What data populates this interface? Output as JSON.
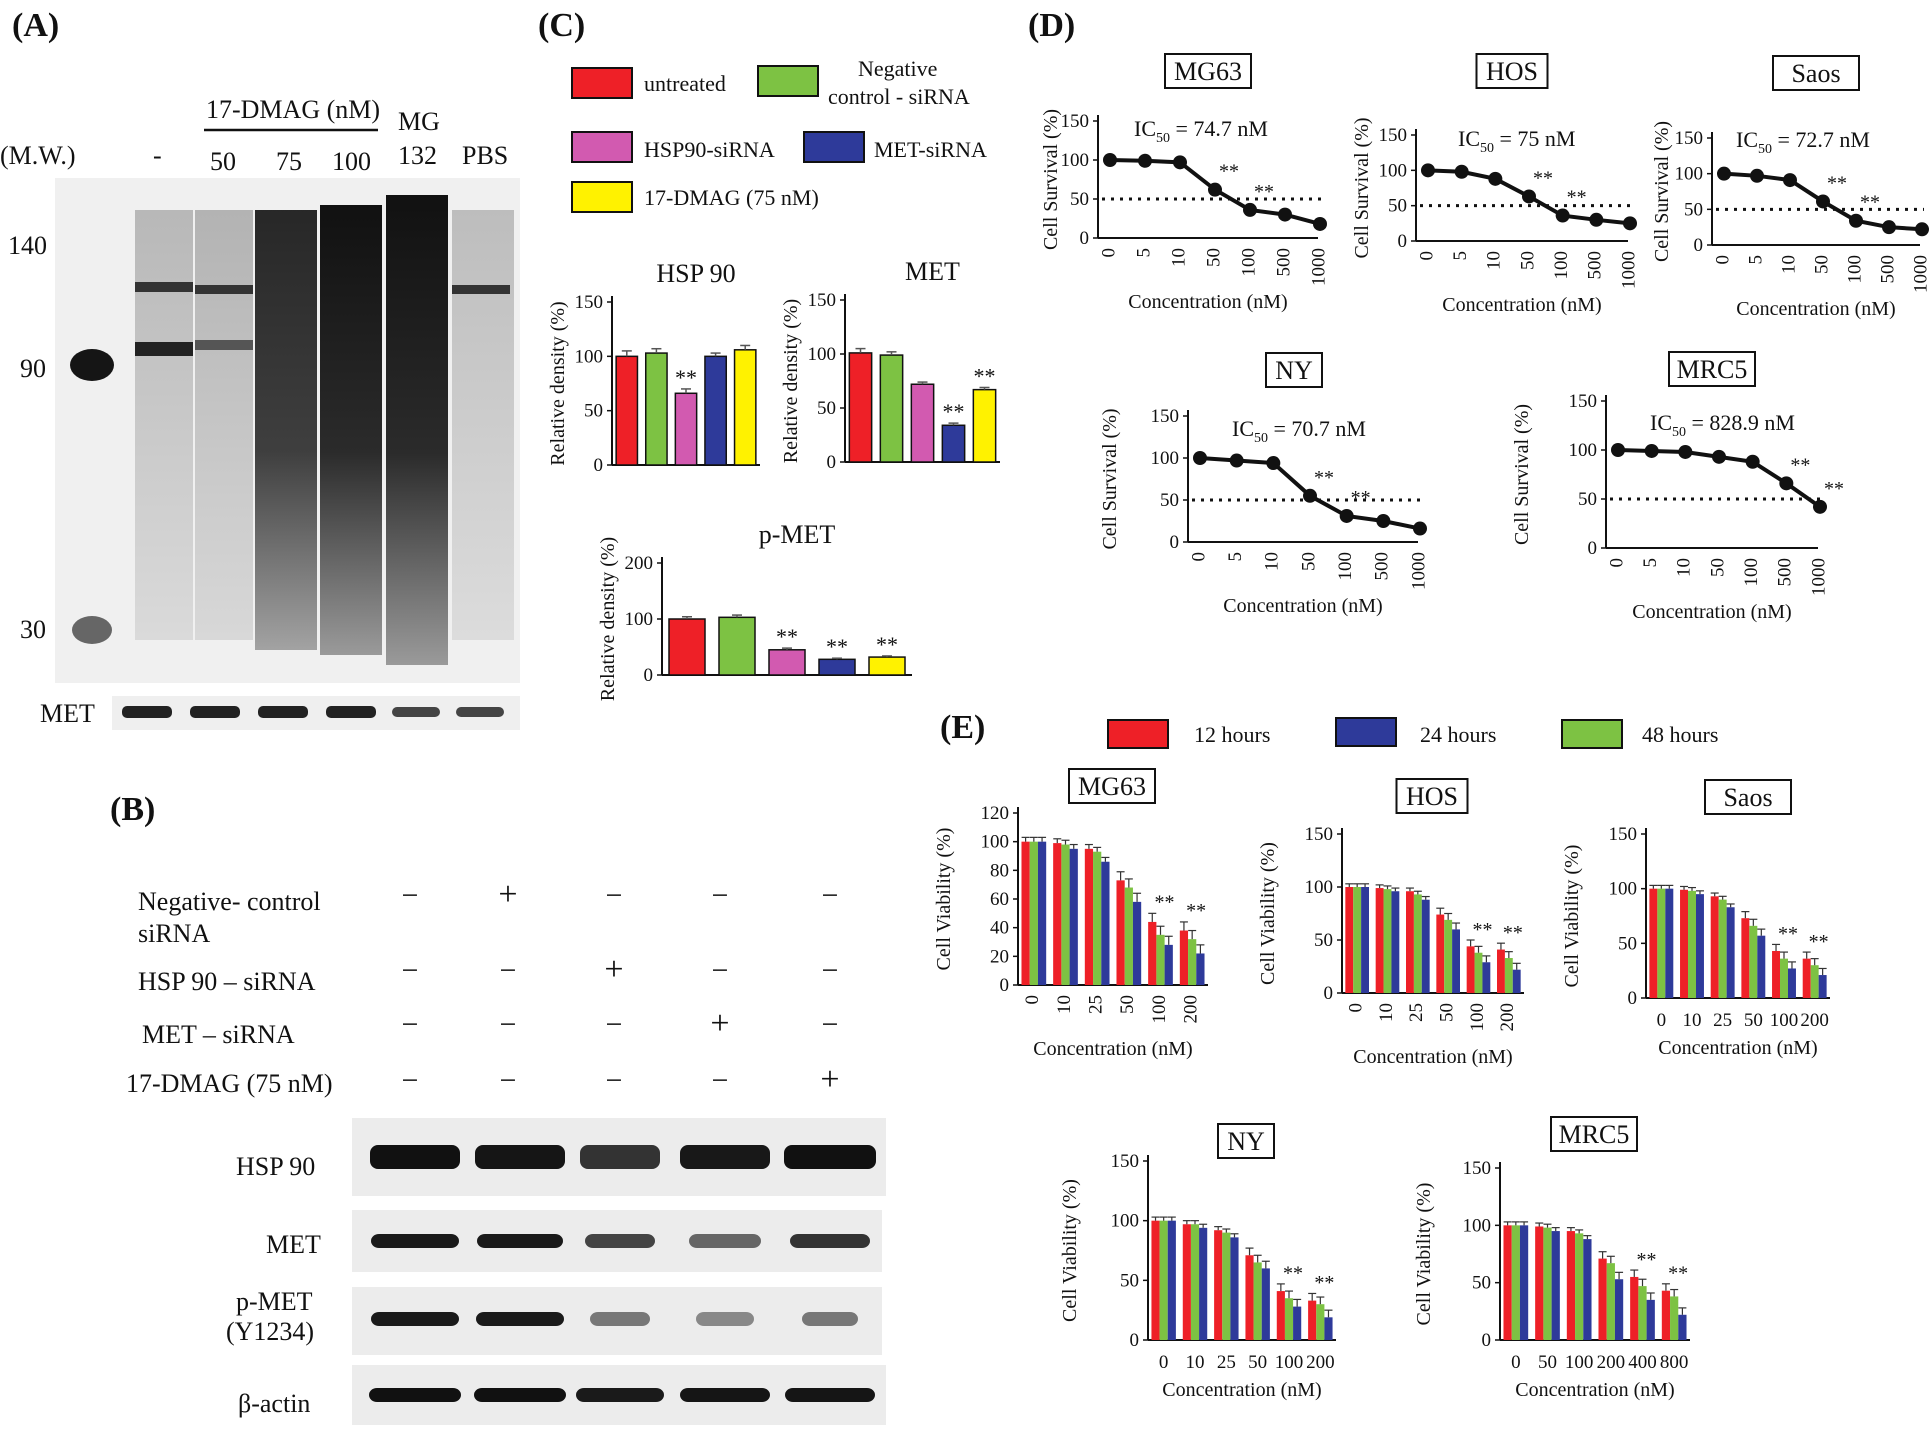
{
  "panels": {
    "A": "(A)",
    "B": "(B)",
    "C": "(C)",
    "D": "(D)",
    "E": "(E)"
  },
  "colors": {
    "untreated": "#ee2027",
    "neg_ctrl": "#7dc243",
    "hsp90_sirna": "#d25ab0",
    "met_sirna": "#2e3a9a",
    "dmag": "#fff200",
    "h12": "#ee2027",
    "h24": "#2e3a9a",
    "h48": "#7dc243"
  },
  "blotA": {
    "dmag_label": "17-DMAG  (nM)",
    "mw_label": "(M.W.)",
    "lanes": [
      "-",
      "50",
      "75",
      "100",
      "MG\n132",
      "PBS"
    ],
    "mg_top": "MG",
    "mg_bottom": "132",
    "mw_markers": [
      "140",
      "90",
      "30"
    ],
    "met_label": "MET"
  },
  "blotB": {
    "conditions": [
      {
        "label": "Negative- control",
        "label2": "siRNA",
        "signs": [
          "-",
          "+",
          "-",
          "-",
          "-"
        ]
      },
      {
        "label": "HSP 90 – siRNA",
        "label2": "",
        "signs": [
          "-",
          "-",
          "+",
          "-",
          "-"
        ]
      },
      {
        "label": "MET – siRNA",
        "label2": "",
        "signs": [
          "-",
          "-",
          "-",
          "+",
          "-"
        ]
      },
      {
        "label": "17-DMAG  (75 nM)",
        "label2": "",
        "signs": [
          "-",
          "-",
          "-",
          "-",
          "+"
        ]
      }
    ],
    "rows": [
      "HSP 90",
      "MET",
      "p-MET",
      "β-actin"
    ],
    "pmet_sub": "(Y1234)"
  },
  "legendC": [
    "untreated",
    "Negative",
    "control - siRNA",
    "HSP90-siRNA",
    "MET-siRNA",
    "17-DMAG (75 nM)"
  ],
  "legendE": [
    "12 hours",
    "24 hours",
    "48 hours"
  ],
  "chart_data": [
    {
      "panel": "C",
      "type": "bar",
      "title": "HSP 90",
      "ylabel": "Relative density (%)",
      "ylim": [
        0,
        150
      ],
      "yticks": [
        0,
        50,
        100,
        150
      ],
      "categories": [
        "untreated",
        "Negative control - siRNA",
        "HSP90-siRNA",
        "MET-siRNA",
        "17-DMAG (75 nM)"
      ],
      "values": [
        100,
        103,
        66,
        100,
        106
      ],
      "errors": [
        5,
        4,
        4,
        3,
        4
      ],
      "marks": [
        "",
        "",
        "**",
        "",
        ""
      ]
    },
    {
      "panel": "C",
      "type": "bar",
      "title": "MET",
      "ylabel": "Relative density (%)",
      "ylim": [
        0,
        150
      ],
      "yticks": [
        0,
        50,
        100,
        150
      ],
      "categories": [
        "untreated",
        "Negative control - siRNA",
        "HSP90-siRNA",
        "MET-siRNA",
        "17-DMAG (75 nM)"
      ],
      "values": [
        101,
        99,
        72,
        34,
        67
      ],
      "errors": [
        4,
        3,
        2,
        2,
        2
      ],
      "marks": [
        "",
        "",
        "",
        "**",
        "**"
      ]
    },
    {
      "panel": "C",
      "type": "bar",
      "title": "p-MET",
      "ylabel": "Relative density (%)",
      "ylim": [
        0,
        200
      ],
      "yticks": [
        0,
        100,
        200
      ],
      "categories": [
        "untreated",
        "Negative control - siRNA",
        "HSP90-siRNA",
        "MET-siRNA",
        "17-DMAG (75 nM)"
      ],
      "values": [
        100,
        103,
        45,
        28,
        32
      ],
      "errors": [
        4,
        4,
        3,
        2,
        2
      ],
      "marks": [
        "",
        "",
        "**",
        "**",
        "**"
      ]
    },
    {
      "panel": "D",
      "type": "line",
      "title": "MG63",
      "ic50": "= 74.7 nM",
      "xlabel": "Concentration  (nM)",
      "ylabel": "Cell Survival (%)",
      "ylim": [
        0,
        150
      ],
      "yticks": [
        0,
        50,
        100,
        150
      ],
      "x": [
        "0",
        "5",
        "10",
        "50",
        "100",
        "500",
        "1000"
      ],
      "y": [
        100,
        99,
        97,
        62,
        36,
        30,
        18
      ],
      "threshold": 50,
      "marks": [
        "",
        "",
        "",
        "**",
        "**",
        "",
        ""
      ]
    },
    {
      "panel": "D",
      "type": "line",
      "title": "HOS",
      "ic50": "= 75 nM",
      "xlabel": "Concentration  (nM)",
      "ylabel": "Cell Survival (%)",
      "ylim": [
        0,
        150
      ],
      "yticks": [
        0,
        50,
        100,
        150
      ],
      "x": [
        "0",
        "5",
        "10",
        "50",
        "100",
        "500",
        "1000"
      ],
      "y": [
        100,
        98,
        88,
        63,
        36,
        30,
        25
      ],
      "threshold": 50,
      "marks": [
        "",
        "",
        "",
        "**",
        "**",
        "",
        ""
      ]
    },
    {
      "panel": "D",
      "type": "line",
      "title": "Saos",
      "ic50": "= 72.7 nM",
      "xlabel": "Concentration  (nM)",
      "ylabel": "Cell Survival (%)",
      "ylim": [
        0,
        150
      ],
      "yticks": [
        0,
        50,
        100,
        150
      ],
      "x": [
        "0",
        "5",
        "10",
        "50",
        "100",
        "500",
        "1000"
      ],
      "y": [
        100,
        97,
        91,
        61,
        34,
        25,
        22
      ],
      "threshold": 50,
      "marks": [
        "",
        "",
        "",
        "**",
        "**",
        "",
        ""
      ]
    },
    {
      "panel": "D",
      "type": "line",
      "title": "NY",
      "ic50": "= 70.7 nM",
      "xlabel": "Concentration  (nM)",
      "ylabel": "Cell Survival (%)",
      "ylim": [
        0,
        150
      ],
      "yticks": [
        0,
        50,
        100,
        150
      ],
      "x": [
        "0",
        "5",
        "10",
        "50",
        "100",
        "500",
        "1000"
      ],
      "y": [
        100,
        97,
        94,
        55,
        31,
        25,
        16
      ],
      "threshold": 50,
      "marks": [
        "",
        "",
        "",
        "**",
        "**",
        "",
        ""
      ]
    },
    {
      "panel": "D",
      "type": "line",
      "title": "MRC5",
      "ic50": "= 828.9 nM",
      "xlabel": "Concentration  (nM)",
      "ylabel": "Cell Survival (%)",
      "ylim": [
        0,
        150
      ],
      "yticks": [
        0,
        50,
        100,
        150
      ],
      "x": [
        "0",
        "5",
        "10",
        "50",
        "100",
        "500",
        "1000"
      ],
      "y": [
        100,
        99,
        98,
        93,
        88,
        66,
        42
      ],
      "threshold": 50,
      "marks": [
        "",
        "",
        "",
        "",
        "",
        "**",
        "**"
      ]
    },
    {
      "panel": "E",
      "type": "bar",
      "title": "MG63",
      "xlabel": "Concentration  (nM)",
      "ylabel": "Cell Viability (%)",
      "ylim": [
        0,
        120
      ],
      "yticks": [
        0,
        20,
        40,
        60,
        80,
        100,
        120
      ],
      "rotate": true,
      "categories": [
        "0",
        "10",
        "25",
        "50",
        "100",
        "200"
      ],
      "series": [
        {
          "name": "12 hours",
          "values": [
            100,
            99,
            95,
            73,
            44,
            38
          ]
        },
        {
          "name": "48 hours",
          "values": [
            100,
            98,
            93,
            68,
            35,
            32
          ]
        },
        {
          "name": "24 hours",
          "values": [
            100,
            95,
            86,
            58,
            28,
            22
          ]
        }
      ],
      "marks": [
        "",
        "",
        "",
        "",
        "**",
        "**"
      ]
    },
    {
      "panel": "E",
      "type": "bar",
      "title": "HOS",
      "xlabel": "Concentration  (nM)",
      "ylabel": "Cell Viability (%)",
      "ylim": [
        0,
        150
      ],
      "yticks": [
        0,
        50,
        100,
        150
      ],
      "rotate": true,
      "categories": [
        "0",
        "10",
        "25",
        "50",
        "100",
        "200"
      ],
      "series": [
        {
          "name": "12 hours",
          "values": [
            100,
            99,
            96,
            74,
            44,
            41
          ]
        },
        {
          "name": "48 hours",
          "values": [
            100,
            98,
            93,
            69,
            38,
            33
          ]
        },
        {
          "name": "24 hours",
          "values": [
            100,
            96,
            88,
            60,
            29,
            22
          ]
        }
      ],
      "marks": [
        "",
        "",
        "",
        "",
        "**",
        "**"
      ]
    },
    {
      "panel": "E",
      "type": "bar",
      "title": "Saos",
      "xlabel": "Concentration  (nM)",
      "ylabel": "Cell Viability (%)",
      "ylim": [
        0,
        150
      ],
      "yticks": [
        0,
        50,
        100,
        150
      ],
      "rotate": false,
      "categories": [
        "0",
        "10",
        "25",
        "50",
        "100",
        "200"
      ],
      "series": [
        {
          "name": "12 hours",
          "values": [
            100,
            99,
            93,
            73,
            43,
            36
          ]
        },
        {
          "name": "48 hours",
          "values": [
            100,
            98,
            90,
            66,
            36,
            30
          ]
        },
        {
          "name": "24 hours",
          "values": [
            100,
            95,
            83,
            57,
            27,
            21
          ]
        }
      ],
      "marks": [
        "",
        "",
        "",
        "",
        "**",
        "**"
      ]
    },
    {
      "panel": "E",
      "type": "bar",
      "title": "NY",
      "xlabel": "Concentration  (nM)",
      "ylabel": "Cell Viability (%)",
      "ylim": [
        0,
        150
      ],
      "yticks": [
        0,
        50,
        100,
        150
      ],
      "rotate": false,
      "categories": [
        "0",
        "10",
        "25",
        "50",
        "100",
        "200"
      ],
      "series": [
        {
          "name": "12 hours",
          "values": [
            100,
            97,
            92,
            71,
            41,
            33
          ]
        },
        {
          "name": "48 hours",
          "values": [
            100,
            97,
            90,
            65,
            35,
            30
          ]
        },
        {
          "name": "24 hours",
          "values": [
            100,
            94,
            86,
            60,
            28,
            19
          ]
        }
      ],
      "marks": [
        "",
        "",
        "",
        "",
        "**",
        "**"
      ]
    },
    {
      "panel": "E",
      "type": "bar",
      "title": "MRC5",
      "xlabel": "Concentration  (nM)",
      "ylabel": "Cell Viability (%)",
      "ylim": [
        0,
        150
      ],
      "yticks": [
        0,
        50,
        100,
        150
      ],
      "rotate": false,
      "categories": [
        "0",
        "50",
        "100",
        "200",
        "400",
        "800"
      ],
      "series": [
        {
          "name": "12 hours",
          "values": [
            100,
            99,
            95,
            71,
            55,
            43
          ]
        },
        {
          "name": "48 hours",
          "values": [
            100,
            98,
            93,
            67,
            47,
            38
          ]
        },
        {
          "name": "24 hours",
          "values": [
            100,
            95,
            88,
            53,
            35,
            22
          ]
        }
      ],
      "marks": [
        "",
        "",
        "",
        "",
        "**",
        "**"
      ]
    }
  ]
}
